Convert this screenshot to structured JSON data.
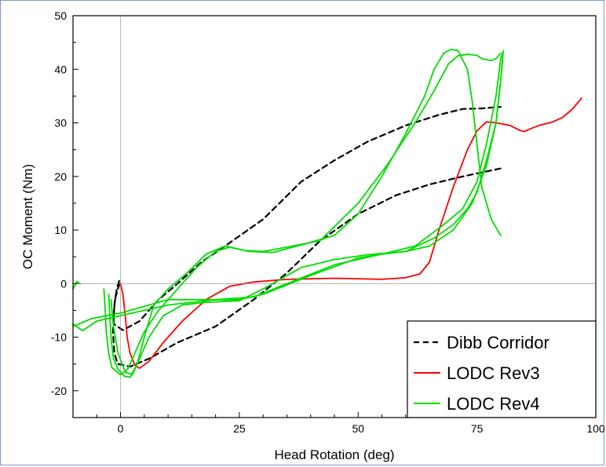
{
  "chart_data": {
    "type": "line",
    "xlabel": "Head Rotation (deg)",
    "ylabel": "OC Moment (Nm)",
    "xlim": [
      -10,
      100
    ],
    "ylim": [
      -25,
      50
    ],
    "xticks": [
      0,
      25,
      50,
      75,
      100
    ],
    "yticks": [
      -20,
      -10,
      0,
      10,
      20,
      30,
      40,
      50
    ],
    "grid": false,
    "legend_position": "bottom-right",
    "colors": {
      "dibb": "#000000",
      "rev3": "#ff0000",
      "rev4": "#00dd00"
    },
    "series": [
      {
        "name": "Dibb Corridor",
        "style": "dashed",
        "color": "#000000",
        "segments": [
          [
            [
              -0.3,
              0.5
            ],
            [
              -0.8,
              -1
            ],
            [
              -1.3,
              -4
            ],
            [
              -1.6,
              -9
            ],
            [
              -1.3,
              -13
            ],
            [
              -0.6,
              -15
            ],
            [
              2,
              -15.5
            ],
            [
              6,
              -14
            ],
            [
              12,
              -11
            ],
            [
              20,
              -8
            ],
            [
              28,
              -3
            ],
            [
              35,
              2
            ],
            [
              42,
              8
            ],
            [
              50,
              13
            ],
            [
              58,
              16.5
            ],
            [
              65,
              18.5
            ],
            [
              72,
              20
            ],
            [
              80,
              21.5
            ]
          ],
          [
            [
              -0.2,
              0
            ],
            [
              -1.2,
              -3
            ],
            [
              -1.5,
              -7.5
            ],
            [
              0.5,
              -8.7
            ],
            [
              4,
              -7
            ],
            [
              8,
              -3
            ],
            [
              12,
              0
            ],
            [
              17,
              4
            ],
            [
              22,
              7
            ],
            [
              30,
              12
            ],
            [
              38,
              19
            ],
            [
              45,
              23
            ],
            [
              52,
              26.5
            ],
            [
              60,
              29.5
            ],
            [
              67,
              31.5
            ],
            [
              72,
              32.6
            ],
            [
              76,
              32.7
            ],
            [
              80,
              33
            ]
          ]
        ]
      },
      {
        "name": "LODC Rev3",
        "style": "solid",
        "color": "#ff0000",
        "segments": [
          [
            [
              0,
              0
            ],
            [
              0.5,
              -2
            ],
            [
              1,
              -6
            ],
            [
              1.4,
              -10
            ],
            [
              2,
              -13
            ],
            [
              3,
              -15.2
            ],
            [
              4,
              -15.8
            ],
            [
              6,
              -14.5
            ],
            [
              9,
              -11
            ],
            [
              13,
              -7
            ],
            [
              18,
              -3
            ],
            [
              23,
              -0.5
            ],
            [
              28,
              0.3
            ],
            [
              35,
              0.8
            ],
            [
              45,
              1
            ],
            [
              55,
              0.8
            ],
            [
              60,
              1.1
            ],
            [
              63,
              1.8
            ],
            [
              65,
              4
            ],
            [
              67,
              10
            ],
            [
              70,
              18
            ],
            [
              73,
              25
            ],
            [
              75,
              28.5
            ],
            [
              77,
              30.2
            ],
            [
              79,
              30
            ],
            [
              82,
              29.5
            ],
            [
              84,
              28.6
            ],
            [
              85,
              28.4
            ],
            [
              86,
              28.8
            ],
            [
              88,
              29.5
            ],
            [
              91,
              30.2
            ],
            [
              93,
              31
            ],
            [
              95,
              32.5
            ],
            [
              97,
              34.6
            ]
          ]
        ]
      },
      {
        "name": "LODC Rev4",
        "style": "solid",
        "color": "#00dd00",
        "segments": [
          [
            [
              -10,
              -1.1
            ],
            [
              -9.2,
              0.4
            ],
            [
              -8.5,
              0
            ]
          ],
          [
            [
              -10,
              -7.5
            ],
            [
              -8,
              -8.8
            ],
            [
              -5,
              -7
            ],
            [
              0,
              -6
            ],
            [
              10,
              -4
            ],
            [
              20,
              -3
            ],
            [
              25,
              -3
            ],
            [
              30,
              -2
            ],
            [
              40,
              1.5
            ],
            [
              50,
              4.8
            ],
            [
              55,
              5.5
            ],
            [
              60,
              6
            ],
            [
              65,
              7
            ],
            [
              70,
              10
            ],
            [
              74,
              15
            ],
            [
              77,
              22
            ],
            [
              79,
              30
            ],
            [
              80,
              38
            ],
            [
              80.5,
              43
            ]
          ],
          [
            [
              -10,
              -8
            ],
            [
              -6,
              -6.5
            ],
            [
              0,
              -5.5
            ],
            [
              10,
              -3
            ],
            [
              20,
              -3
            ],
            [
              28,
              -2.5
            ],
            [
              35,
              0
            ],
            [
              45,
              3.5
            ],
            [
              55,
              5.5
            ],
            [
              62,
              7
            ],
            [
              68,
              11
            ],
            [
              72,
              14
            ],
            [
              75,
              19
            ],
            [
              77,
              26
            ],
            [
              79,
              35
            ],
            [
              80,
              42
            ],
            [
              80.6,
              43.5
            ]
          ],
          [
            [
              -3.5,
              -1
            ],
            [
              -3.3,
              -4
            ],
            [
              -3,
              -9
            ],
            [
              -2.5,
              -13
            ],
            [
              -1.8,
              -15.7
            ],
            [
              0,
              -17
            ],
            [
              1.5,
              -16
            ],
            [
              3,
              -13
            ],
            [
              5,
              -9
            ],
            [
              8,
              -5
            ],
            [
              12,
              -1
            ],
            [
              16,
              3
            ],
            [
              20,
              6
            ],
            [
              23,
              6.8
            ],
            [
              27,
              6
            ],
            [
              32,
              5.8
            ],
            [
              38,
              7.2
            ],
            [
              45,
              9
            ],
            [
              50,
              13
            ],
            [
              55,
              20
            ],
            [
              60,
              28
            ],
            [
              64,
              35
            ],
            [
              66,
              40
            ],
            [
              68,
              43
            ],
            [
              69.5,
              43.7
            ],
            [
              71,
              43.5
            ],
            [
              73,
              40
            ],
            [
              74,
              34
            ],
            [
              75,
              26
            ],
            [
              76,
              18
            ],
            [
              78,
              12
            ],
            [
              80,
              9
            ]
          ],
          [
            [
              -2.5,
              -2
            ],
            [
              -2.3,
              -5
            ],
            [
              -2,
              -10
            ],
            [
              -1.5,
              -14
            ],
            [
              -0.5,
              -16
            ],
            [
              0.8,
              -17.3
            ],
            [
              2,
              -17.5
            ],
            [
              3.5,
              -15
            ],
            [
              5,
              -10
            ],
            [
              7,
              -4
            ],
            [
              10,
              -1
            ],
            [
              14,
              2
            ],
            [
              18,
              5.5
            ],
            [
              22,
              7
            ],
            [
              26,
              6.2
            ],
            [
              30,
              6
            ],
            [
              35,
              6.8
            ],
            [
              42,
              8
            ],
            [
              50,
              15
            ],
            [
              56,
              22
            ],
            [
              62,
              30
            ],
            [
              66,
              36
            ],
            [
              69,
              41
            ],
            [
              71,
              42.5
            ],
            [
              73,
              42.8
            ],
            [
              75,
              42.6
            ],
            [
              76,
              42
            ],
            [
              78,
              41.6
            ],
            [
              79,
              42
            ],
            [
              80,
              43
            ]
          ],
          [
            [
              -2,
              -3
            ],
            [
              -1.5,
              -8
            ],
            [
              -0.5,
              -13
            ],
            [
              1,
              -16.5
            ],
            [
              2.5,
              -17
            ],
            [
              4,
              -14
            ],
            [
              6,
              -10
            ],
            [
              9,
              -6
            ],
            [
              13,
              -4
            ],
            [
              18,
              -3.5
            ],
            [
              25,
              -3.2
            ],
            [
              30,
              -1
            ],
            [
              38,
              3
            ],
            [
              45,
              4.5
            ],
            [
              52,
              5.4
            ],
            [
              60,
              6
            ],
            [
              66,
              8.5
            ],
            [
              70,
              11
            ],
            [
              73,
              14
            ],
            [
              75,
              17
            ],
            [
              77,
              23
            ],
            [
              79,
              30
            ],
            [
              80,
              38
            ],
            [
              80.4,
              42
            ]
          ]
        ]
      }
    ]
  }
}
